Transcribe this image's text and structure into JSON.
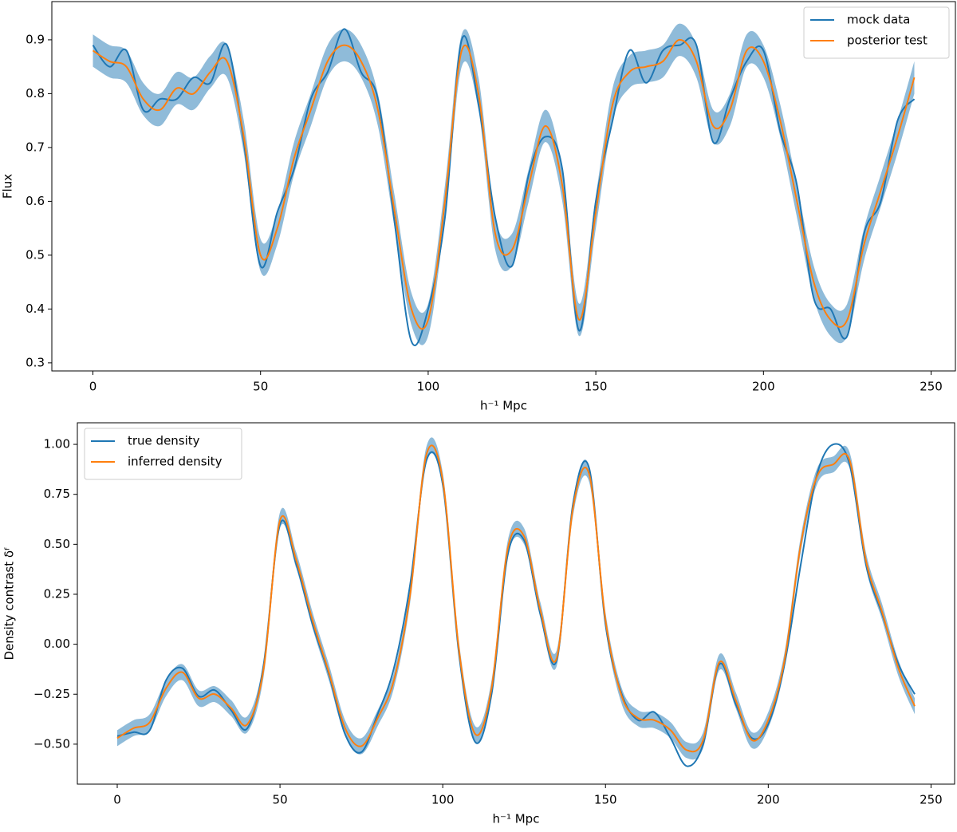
{
  "chart_data": [
    {
      "type": "line",
      "xlabel": "h⁻¹ Mpc",
      "ylabel": "Flux",
      "x": [
        0,
        5,
        10,
        15,
        20,
        25,
        30,
        35,
        40,
        45,
        50,
        55,
        60,
        65,
        70,
        75,
        80,
        85,
        90,
        95,
        100,
        105,
        110,
        115,
        120,
        125,
        130,
        135,
        140,
        145,
        150,
        155,
        160,
        165,
        170,
        175,
        180,
        185,
        190,
        195,
        200,
        205,
        210,
        215,
        220,
        225,
        230,
        235,
        240,
        245
      ],
      "series": [
        {
          "name": "mock data",
          "color": "#1f77b4",
          "values": [
            0.89,
            0.85,
            0.88,
            0.77,
            0.79,
            0.79,
            0.83,
            0.82,
            0.89,
            0.71,
            0.48,
            0.58,
            0.66,
            0.79,
            0.84,
            0.92,
            0.84,
            0.79,
            0.56,
            0.34,
            0.4,
            0.57,
            0.9,
            0.78,
            0.57,
            0.48,
            0.65,
            0.72,
            0.66,
            0.36,
            0.6,
            0.75,
            0.88,
            0.82,
            0.88,
            0.89,
            0.89,
            0.71,
            0.79,
            0.86,
            0.88,
            0.73,
            0.63,
            0.42,
            0.4,
            0.35,
            0.54,
            0.6,
            0.75,
            0.79
          ]
        },
        {
          "name": "posterior test",
          "color": "#ff7f0e",
          "values": [
            0.88,
            0.86,
            0.85,
            0.79,
            0.77,
            0.81,
            0.8,
            0.84,
            0.86,
            0.72,
            0.5,
            0.55,
            0.68,
            0.77,
            0.86,
            0.89,
            0.86,
            0.77,
            0.58,
            0.4,
            0.38,
            0.6,
            0.88,
            0.8,
            0.54,
            0.51,
            0.63,
            0.74,
            0.63,
            0.38,
            0.58,
            0.78,
            0.84,
            0.85,
            0.86,
            0.9,
            0.86,
            0.74,
            0.77,
            0.88,
            0.86,
            0.75,
            0.6,
            0.45,
            0.38,
            0.38,
            0.52,
            0.62,
            0.72,
            0.83
          ]
        }
      ],
      "band": {
        "color": "#1f77b4",
        "lower": [
          0.85,
          0.83,
          0.82,
          0.76,
          0.74,
          0.78,
          0.77,
          0.81,
          0.83,
          0.69,
          0.47,
          0.52,
          0.65,
          0.74,
          0.83,
          0.86,
          0.83,
          0.74,
          0.55,
          0.37,
          0.35,
          0.57,
          0.85,
          0.77,
          0.51,
          0.48,
          0.6,
          0.71,
          0.6,
          0.35,
          0.55,
          0.75,
          0.81,
          0.82,
          0.83,
          0.87,
          0.83,
          0.71,
          0.74,
          0.85,
          0.83,
          0.72,
          0.57,
          0.42,
          0.35,
          0.35,
          0.49,
          0.59,
          0.69,
          0.8
        ],
        "upper": [
          0.91,
          0.89,
          0.88,
          0.82,
          0.8,
          0.84,
          0.83,
          0.87,
          0.89,
          0.75,
          0.53,
          0.58,
          0.71,
          0.8,
          0.89,
          0.92,
          0.89,
          0.8,
          0.61,
          0.43,
          0.41,
          0.63,
          0.91,
          0.83,
          0.57,
          0.54,
          0.66,
          0.77,
          0.66,
          0.41,
          0.61,
          0.81,
          0.87,
          0.88,
          0.89,
          0.93,
          0.89,
          0.77,
          0.8,
          0.91,
          0.89,
          0.78,
          0.63,
          0.48,
          0.41,
          0.41,
          0.55,
          0.65,
          0.75,
          0.86
        ]
      },
      "xlim": [
        -12.25,
        257.25
      ],
      "ylim": [
        0.285,
        0.971
      ],
      "xticks": [
        0,
        50,
        100,
        150,
        200,
        250
      ],
      "yticks": [
        0.3,
        0.4,
        0.5,
        0.6,
        0.7,
        0.8,
        0.9
      ],
      "legend": "upper right"
    },
    {
      "type": "line",
      "xlabel": "h⁻¹ Mpc",
      "ylabel": "Density contrast δᶠ",
      "x": [
        0,
        5,
        10,
        15,
        20,
        25,
        30,
        35,
        40,
        45,
        50,
        55,
        60,
        65,
        70,
        75,
        80,
        85,
        90,
        95,
        100,
        105,
        110,
        115,
        120,
        125,
        130,
        135,
        140,
        145,
        150,
        155,
        160,
        165,
        170,
        175,
        180,
        185,
        190,
        195,
        200,
        205,
        210,
        215,
        220,
        225,
        230,
        235,
        240,
        245
      ],
      "series": [
        {
          "name": "true density",
          "color": "#1f77b4",
          "values": [
            -0.46,
            -0.44,
            -0.43,
            -0.18,
            -0.12,
            -0.26,
            -0.23,
            -0.33,
            -0.42,
            -0.1,
            0.6,
            0.4,
            0.1,
            -0.15,
            -0.45,
            -0.54,
            -0.35,
            -0.12,
            0.3,
            0.92,
            0.8,
            -0.05,
            -0.49,
            -0.25,
            0.45,
            0.52,
            0.15,
            -0.08,
            0.7,
            0.88,
            0.1,
            -0.25,
            -0.38,
            -0.34,
            -0.47,
            -0.61,
            -0.5,
            -0.1,
            -0.3,
            -0.47,
            -0.4,
            -0.1,
            0.4,
            0.85,
            1.0,
            0.9,
            0.4,
            0.15,
            -0.1,
            -0.25
          ]
        },
        {
          "name": "inferred density",
          "color": "#ff7f0e",
          "values": [
            -0.47,
            -0.42,
            -0.39,
            -0.22,
            -0.14,
            -0.27,
            -0.25,
            -0.32,
            -0.4,
            -0.12,
            0.62,
            0.42,
            0.12,
            -0.14,
            -0.42,
            -0.51,
            -0.37,
            -0.18,
            0.25,
            0.95,
            0.82,
            -0.03,
            -0.45,
            -0.22,
            0.48,
            0.54,
            0.17,
            -0.07,
            0.68,
            0.85,
            0.12,
            -0.26,
            -0.37,
            -0.38,
            -0.43,
            -0.53,
            -0.48,
            -0.09,
            -0.28,
            -0.48,
            -0.38,
            -0.08,
            0.5,
            0.84,
            0.9,
            0.92,
            0.42,
            0.16,
            -0.12,
            -0.31
          ]
        }
      ],
      "band": {
        "color": "#1f77b4",
        "lower": [
          -0.51,
          -0.46,
          -0.43,
          -0.26,
          -0.18,
          -0.31,
          -0.29,
          -0.36,
          -0.44,
          -0.16,
          0.58,
          0.38,
          0.08,
          -0.18,
          -0.46,
          -0.55,
          -0.41,
          -0.22,
          0.21,
          0.91,
          0.78,
          -0.07,
          -0.49,
          -0.26,
          0.44,
          0.5,
          0.13,
          -0.11,
          0.64,
          0.81,
          0.08,
          -0.3,
          -0.41,
          -0.42,
          -0.47,
          -0.57,
          -0.52,
          -0.13,
          -0.32,
          -0.52,
          -0.42,
          -0.12,
          0.46,
          0.8,
          0.86,
          0.88,
          0.38,
          0.12,
          -0.16,
          -0.35
        ],
        "upper": [
          -0.43,
          -0.38,
          -0.35,
          -0.18,
          -0.1,
          -0.23,
          -0.21,
          -0.28,
          -0.36,
          -0.08,
          0.66,
          0.46,
          0.16,
          -0.1,
          -0.38,
          -0.47,
          -0.33,
          -0.14,
          0.29,
          0.99,
          0.86,
          0.01,
          -0.41,
          -0.18,
          0.52,
          0.58,
          0.21,
          -0.03,
          0.72,
          0.89,
          0.16,
          -0.22,
          -0.33,
          -0.34,
          -0.39,
          -0.49,
          -0.44,
          -0.05,
          -0.24,
          -0.44,
          -0.34,
          -0.04,
          0.54,
          0.88,
          0.94,
          0.96,
          0.46,
          0.2,
          -0.08,
          -0.27
        ]
      },
      "xlim": [
        -12.25,
        257.25
      ],
      "ylim": [
        -0.7,
        1.108
      ],
      "xticks": [
        0,
        50,
        100,
        150,
        200,
        250
      ],
      "yticks": [
        {
          "value": -0.5,
          "label": "−0.50"
        },
        {
          "value": -0.25,
          "label": "−0.25"
        },
        {
          "value": 0,
          "label": "0.00"
        },
        {
          "value": 0.25,
          "label": "0.25"
        },
        {
          "value": 0.5,
          "label": "0.50"
        },
        {
          "value": 0.75,
          "label": "0.75"
        },
        {
          "value": 1,
          "label": "1.00"
        }
      ],
      "legend": "upper left"
    }
  ]
}
